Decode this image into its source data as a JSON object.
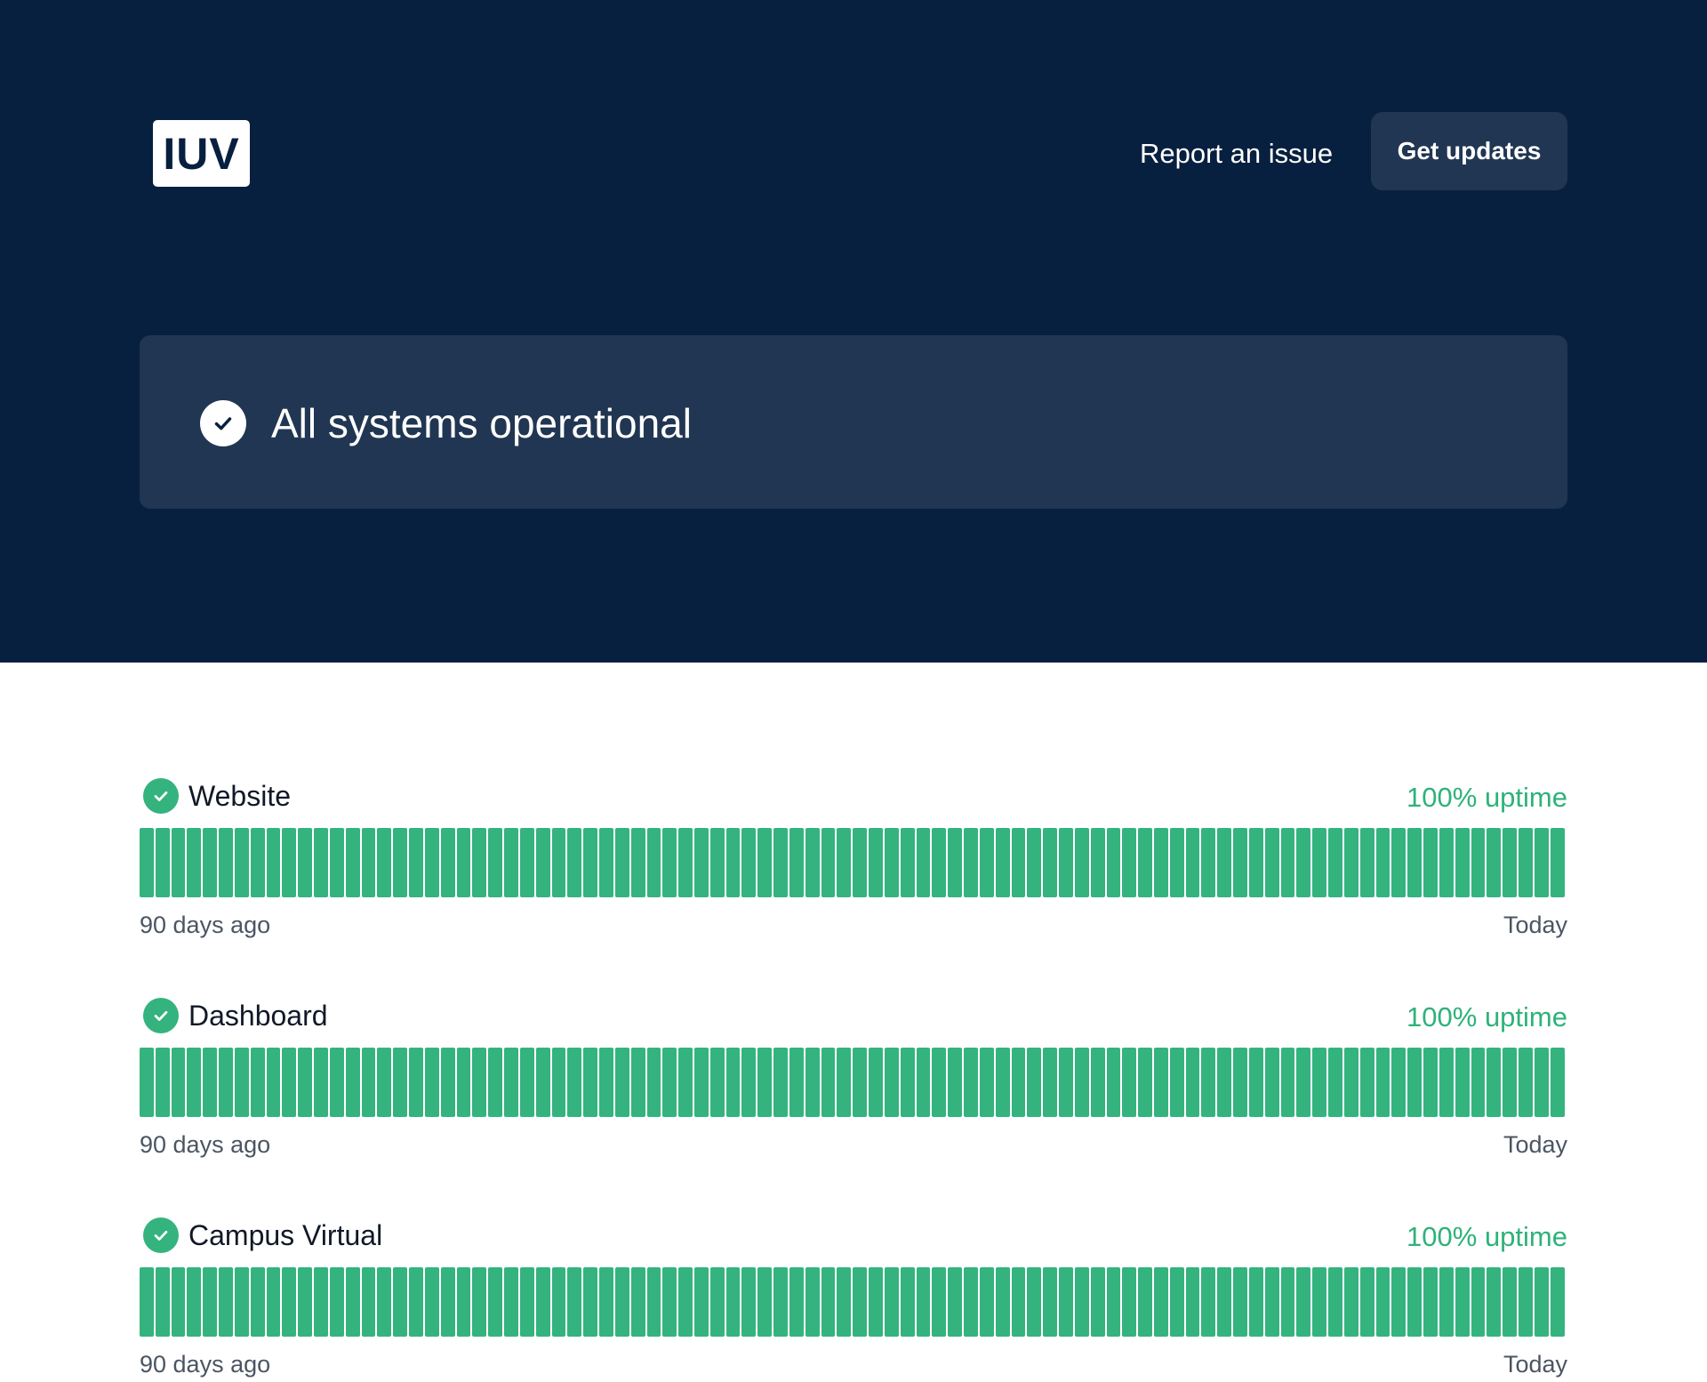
{
  "header": {
    "logo_text": "IUV",
    "report_link": "Report an issue",
    "updates_button": "Get updates"
  },
  "status": {
    "message": "All systems operational",
    "icon": "check-circle-icon"
  },
  "components": [
    {
      "name": "Website",
      "uptime": "100% uptime",
      "days": 90,
      "status": "operational",
      "range_start": "90 days ago",
      "range_end": "Today"
    },
    {
      "name": "Dashboard",
      "uptime": "100% uptime",
      "days": 90,
      "status": "operational",
      "range_start": "90 days ago",
      "range_end": "Today"
    },
    {
      "name": "Campus Virtual",
      "uptime": "100% uptime",
      "days": 90,
      "status": "operational",
      "range_start": "90 days ago",
      "range_end": "Today"
    }
  ],
  "colors": {
    "header_bg": "#08203f",
    "panel_bg": "#213652",
    "operational": "#34b37e",
    "uptime_text": "#2eb27a"
  }
}
